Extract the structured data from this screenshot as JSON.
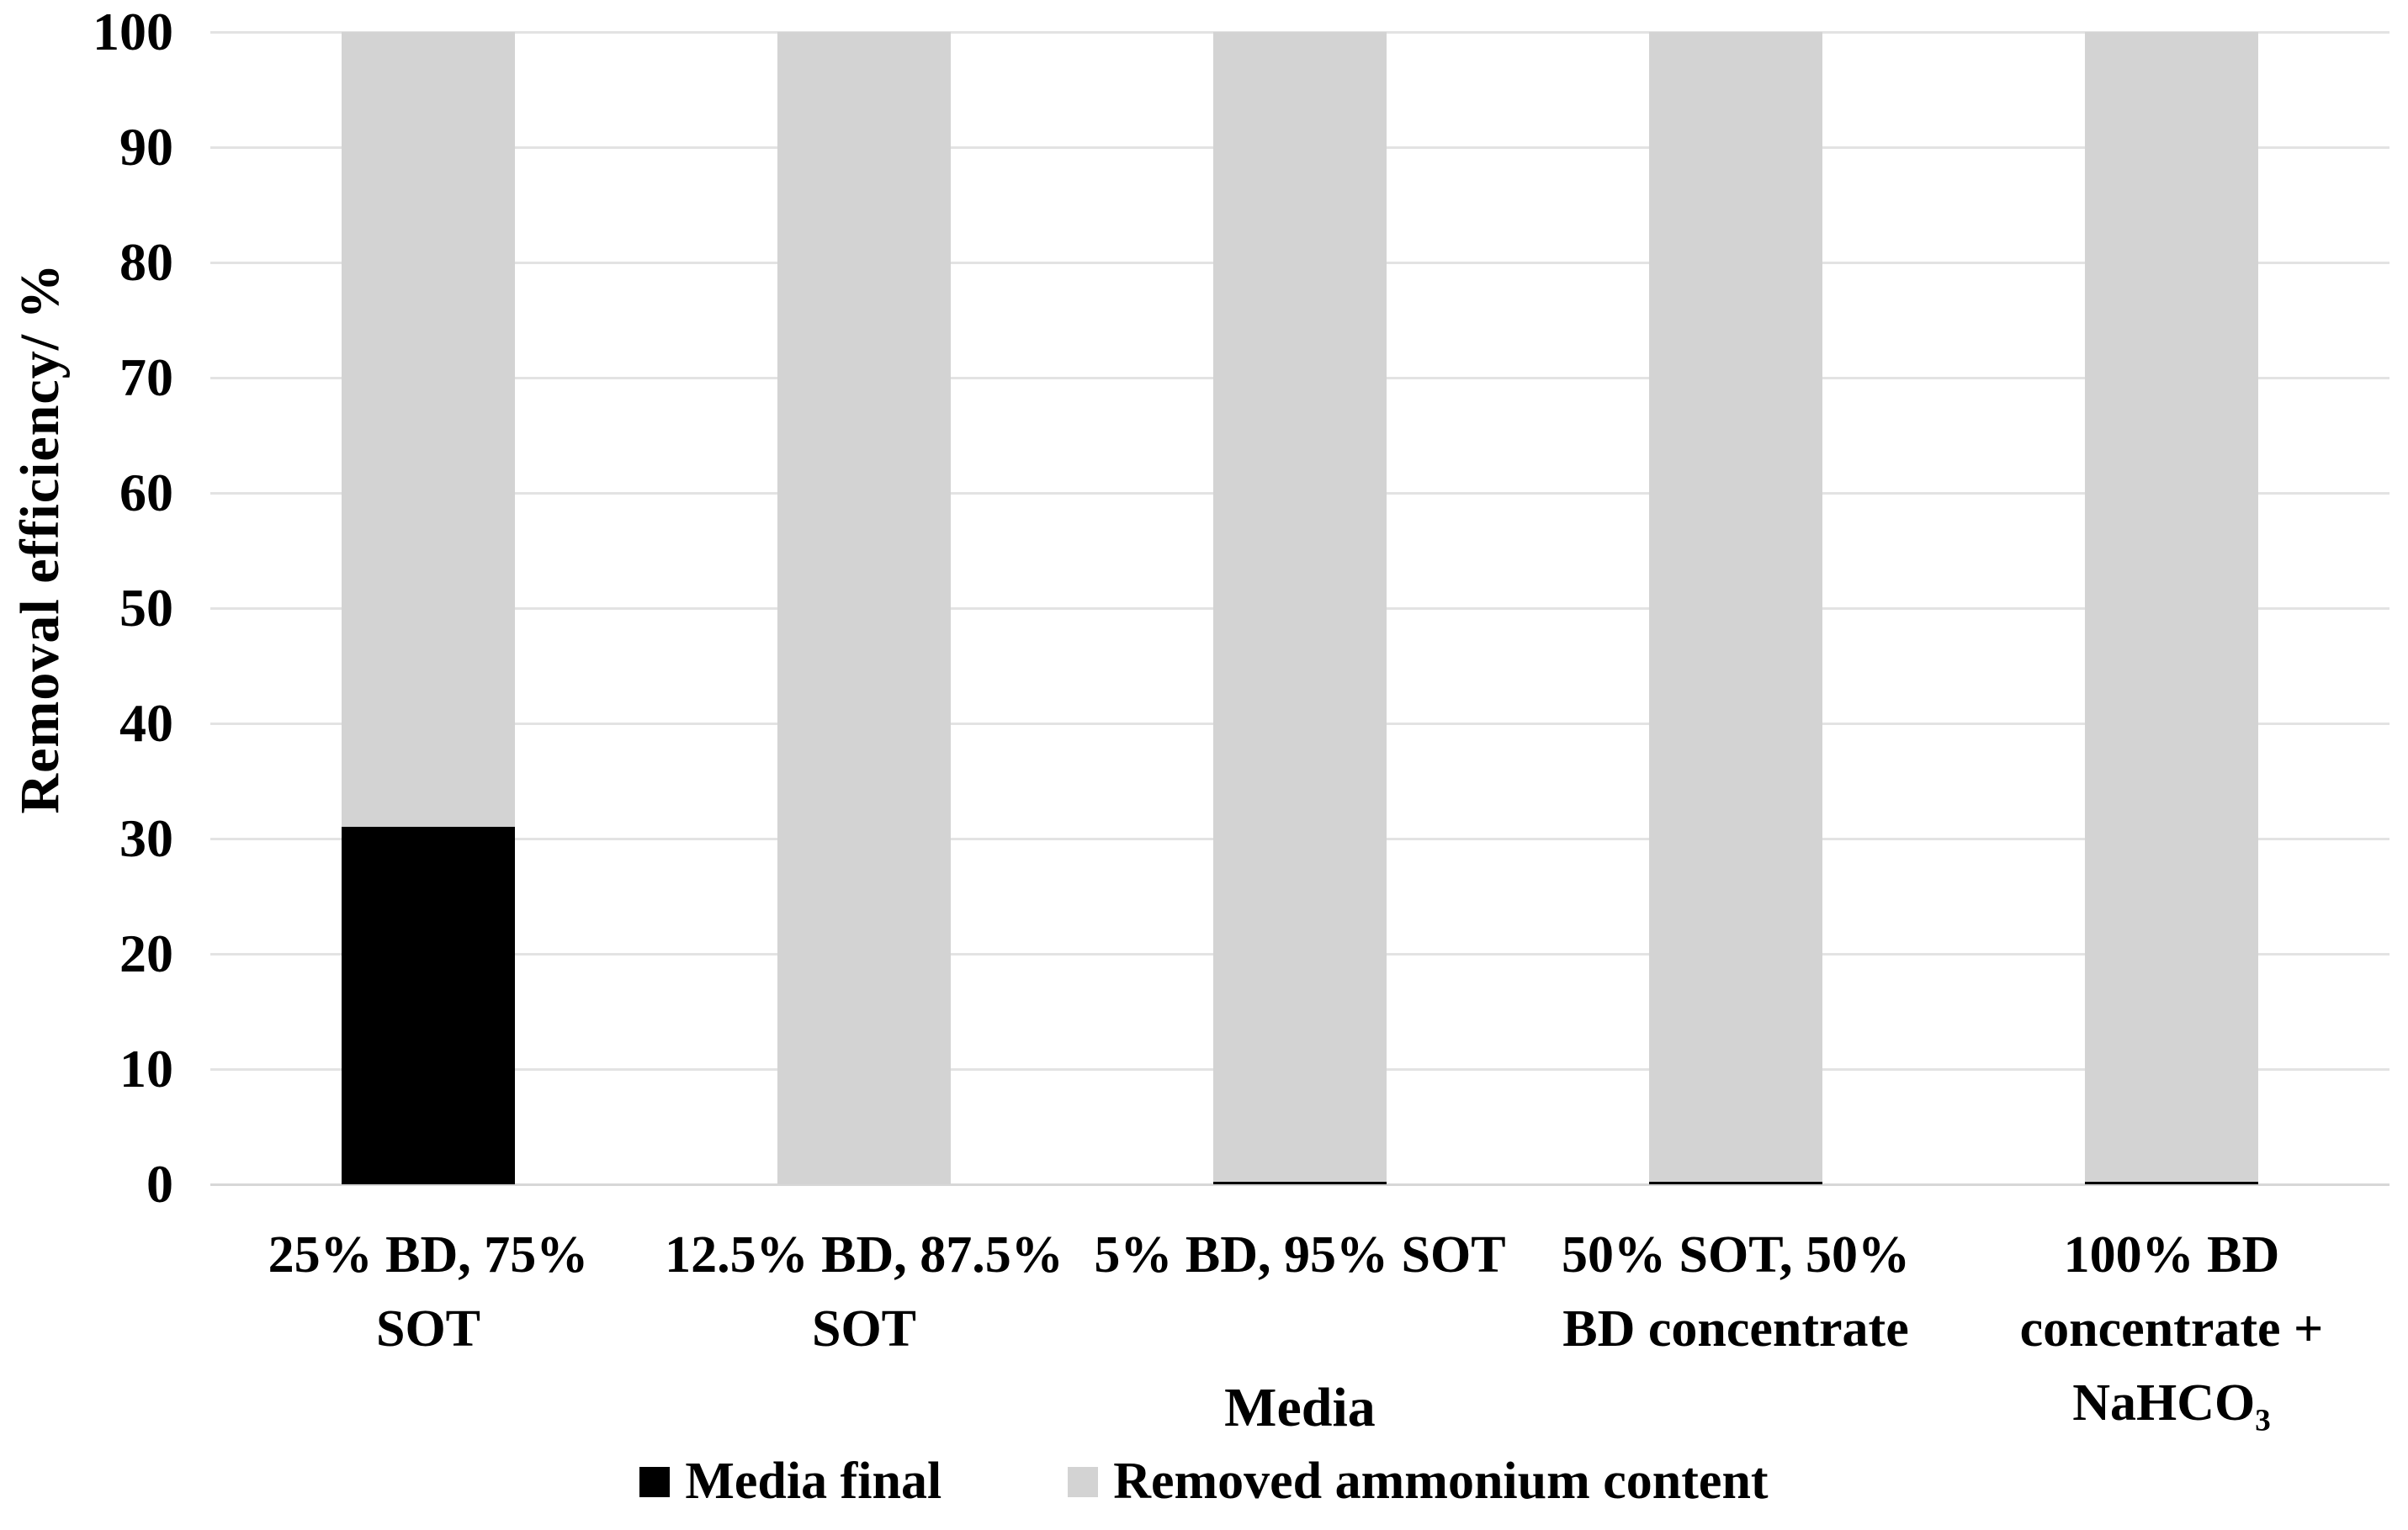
{
  "chart_data": {
    "type": "bar",
    "stacked": true,
    "title": "",
    "xlabel": "Media",
    "ylabel": "Removal efficiency/ %",
    "ylim": [
      0,
      100
    ],
    "ytick_step": 10,
    "grid": true,
    "legend_position": "bottom",
    "categories": [
      "25% BD, 75% SOT",
      "12.5% BD, 87.5% SOT",
      "5% BD, 95% SOT",
      "50% SOT, 50% BD concentrate",
      "100% BD concentrate + NaHCO₃"
    ],
    "category_label_lines": [
      [
        "25% BD, 75%",
        "SOT"
      ],
      [
        "12.5% BD, 87.5%",
        "SOT"
      ],
      [
        "5% BD, 95% SOT"
      ],
      [
        "50% SOT, 50%",
        "BD concentrate"
      ],
      [
        "100% BD",
        "concentrate +",
        "NaHCO₃"
      ]
    ],
    "series": [
      {
        "name": "Media final",
        "color": "#000000",
        "values": [
          31,
          0,
          0.2,
          0.2,
          0.2
        ]
      },
      {
        "name": "Removed ammonium content",
        "color": "#d3d3d3",
        "values": [
          69,
          100,
          99.8,
          99.8,
          99.8
        ]
      }
    ]
  },
  "colors": {
    "background": "#ffffff",
    "gridline": "#e3e3e3",
    "axis_line": "#d7d7d7",
    "text": "#000000"
  }
}
